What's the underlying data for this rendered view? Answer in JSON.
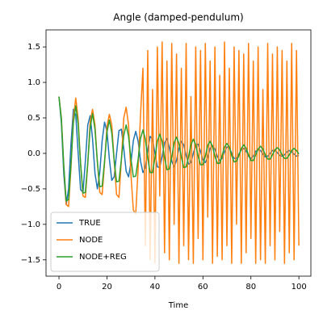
{
  "chart_data": {
    "type": "line",
    "title": "Angle (damped-pendulum)",
    "x_label": "Time",
    "x": [
      0,
      1,
      2,
      3,
      4,
      5,
      6,
      7,
      8,
      9,
      10,
      11,
      12,
      13,
      14,
      15,
      16,
      17,
      18,
      19,
      20,
      21,
      22,
      23,
      24,
      25,
      26,
      27,
      28,
      29,
      30,
      31,
      32,
      33,
      34,
      35,
      36,
      37,
      38,
      39,
      40,
      41,
      42,
      43,
      44,
      45,
      46,
      47,
      48,
      49,
      50,
      51,
      52,
      53,
      54,
      55,
      56,
      57,
      58,
      59,
      60,
      61,
      62,
      63,
      64,
      65,
      66,
      67,
      68,
      69,
      70,
      71,
      72,
      73,
      74,
      75,
      76,
      77,
      78,
      79,
      80,
      81,
      82,
      83,
      84,
      85,
      86,
      87,
      88,
      89,
      90,
      91,
      92,
      93,
      94,
      95,
      96,
      97,
      98,
      99,
      100
    ],
    "series": [
      {
        "name": "TRUE",
        "color": "#1f77b4",
        "values": [
          0.8,
          0.43,
          -0.29,
          -0.72,
          -0.5,
          0.13,
          0.62,
          0.54,
          0,
          -0.51,
          -0.55,
          -0.11,
          0.4,
          0.53,
          0.2,
          -0.28,
          -0.5,
          -0.27,
          0.18,
          0.44,
          0.31,
          -0.08,
          -0.38,
          -0.33,
          0,
          0.32,
          0.34,
          0.07,
          -0.25,
          -0.33,
          -0.13,
          0.18,
          0.31,
          0.17,
          -0.11,
          -0.27,
          -0.2,
          0.05,
          0.24,
          0.2,
          0,
          -0.19,
          -0.2,
          -0.04,
          0.15,
          0.21,
          0.08,
          -0.11,
          -0.19,
          -0.1,
          0.07,
          0.17,
          0.12,
          -0.03,
          -0.15,
          -0.13,
          0,
          0.12,
          0.13,
          0.03,
          -0.09,
          -0.13,
          -0.05,
          0.07,
          0.11,
          0.06,
          -0.04,
          -0.1,
          -0.07,
          0.02,
          0.09,
          0.08,
          0,
          -0.07,
          -0.07,
          -0.01,
          0.05,
          0.07,
          0.03,
          -0.04,
          -0.07,
          -0.04,
          0.03,
          0.06,
          0.04,
          -0.01,
          -0.05,
          -0.04,
          0,
          0.04,
          0.04,
          0.01,
          -0.03,
          -0.04,
          -0.02,
          0.02,
          0.04,
          0.02,
          -0.01,
          -0.04,
          -0.03
        ]
      },
      {
        "name": "NODE",
        "color": "#ff7f0e",
        "values": [
          0.8,
          0.5,
          -0.18,
          -0.72,
          -0.75,
          -0.2,
          0.5,
          0.78,
          0.48,
          -0.15,
          -0.6,
          -0.62,
          -0.15,
          0.45,
          0.62,
          0.4,
          -0.12,
          -0.55,
          -0.58,
          -0.14,
          0.38,
          0.55,
          0.4,
          -0.1,
          -0.58,
          -0.62,
          -0.1,
          0.5,
          0.65,
          0.4,
          -0.3,
          -0.8,
          -0.85,
          -0.2,
          0.55,
          1.2,
          -1.3,
          1.45,
          -1.5,
          0.9,
          -1.55,
          1.5,
          -0.6,
          1.57,
          -1.4,
          1.3,
          -1.5,
          1.55,
          -1.0,
          1.4,
          -1.55,
          1.2,
          -1.3,
          1.55,
          -1.5,
          0.8,
          -1.55,
          1.5,
          -1.2,
          1.45,
          -1.5,
          1.55,
          -0.9,
          1.3,
          -1.55,
          1.5,
          -1.45,
          1.1,
          -1.5,
          1.57,
          -1.3,
          1.2,
          -1.55,
          1.5,
          -1.0,
          1.45,
          -1.55,
          1.4,
          -1.4,
          1.55,
          -1.2,
          1.3,
          -1.55,
          1.5,
          -1.5,
          0.9,
          -1.55,
          1.55,
          -1.3,
          1.4,
          -1.5,
          1.5,
          -1.1,
          1.45,
          -1.55,
          1.3,
          -1.4,
          1.55,
          -1.5,
          1.45,
          -1.3
        ]
      },
      {
        "name": "NODE+REG",
        "color": "#2ca02c",
        "values": [
          0.8,
          0.48,
          -0.17,
          -0.67,
          -0.65,
          -0.16,
          0.43,
          0.67,
          0.41,
          -0.14,
          -0.56,
          -0.55,
          -0.13,
          0.36,
          0.56,
          0.34,
          -0.12,
          -0.47,
          -0.46,
          -0.11,
          0.3,
          0.47,
          0.29,
          -0.1,
          -0.4,
          -0.39,
          -0.09,
          0.25,
          0.4,
          0.24,
          -0.08,
          -0.33,
          -0.32,
          -0.08,
          0.21,
          0.33,
          0.2,
          -0.07,
          -0.27,
          -0.27,
          -0.06,
          0.17,
          0.27,
          0.17,
          -0.06,
          -0.23,
          -0.22,
          -0.05,
          0.15,
          0.23,
          0.14,
          -0.05,
          -0.2,
          -0.19,
          -0.05,
          0.12,
          0.2,
          0.12,
          -0.04,
          -0.16,
          -0.16,
          -0.04,
          0.11,
          0.17,
          0.1,
          -0.04,
          -0.14,
          -0.14,
          -0.03,
          0.09,
          0.14,
          0.09,
          -0.03,
          -0.12,
          -0.11,
          -0.03,
          0.07,
          0.12,
          0.07,
          -0.02,
          -0.1,
          -0.1,
          -0.02,
          0.06,
          0.1,
          0.06,
          -0.02,
          -0.08,
          -0.08,
          -0.02,
          0.05,
          0.08,
          0.05,
          -0.02,
          -0.07,
          -0.07,
          -0.02,
          0.04,
          0.07,
          0.04,
          -0.01
        ]
      }
    ],
    "xlim": [
      -5.4,
      105
    ],
    "xticks": [
      0,
      20,
      40,
      60,
      80,
      100
    ],
    "ylim": [
      -1.73,
      1.74
    ],
    "yticks": [
      {
        "value": -1.5,
        "label": "−1.5"
      },
      {
        "value": -1.0,
        "label": "−1.0"
      },
      {
        "value": -0.5,
        "label": "−0.5"
      },
      {
        "value": 0,
        "label": "0.0"
      },
      {
        "value": 0.5,
        "label": "0.5"
      },
      {
        "value": 1.0,
        "label": "1.0"
      },
      {
        "value": 1.5,
        "label": "1.5"
      }
    ],
    "legend": "lower left"
  }
}
